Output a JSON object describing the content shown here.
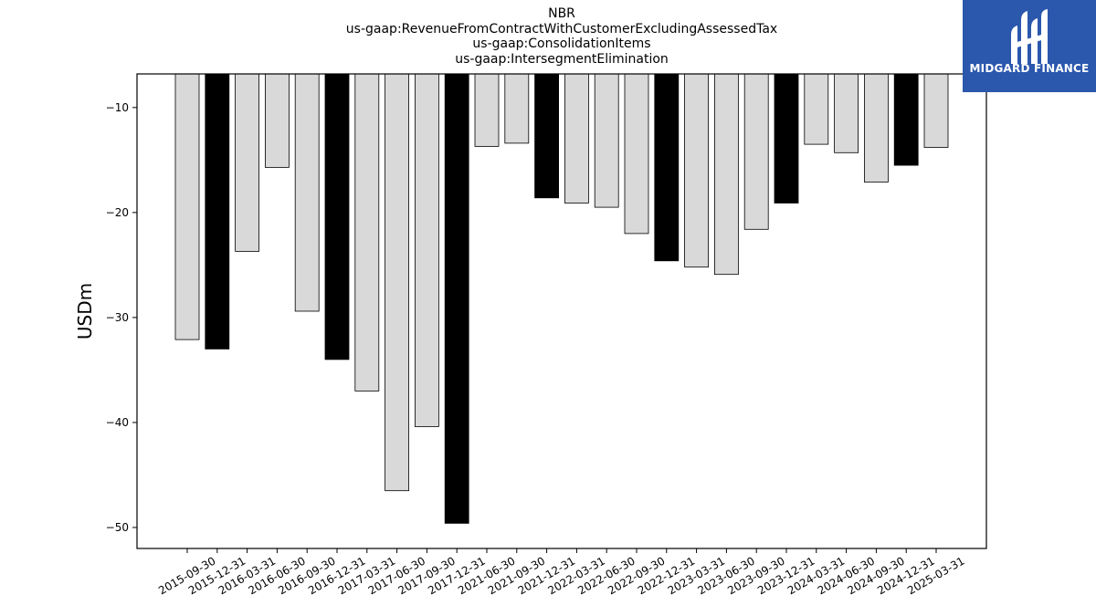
{
  "chart_data": {
    "type": "bar",
    "title_lines": [
      "NBR",
      "us-gaap:RevenueFromContractWithCustomerExcludingAssessedTax",
      "us-gaap:ConsolidationItems",
      "us-gaap:IntersegmentElimination"
    ],
    "xlabel": "",
    "ylabel": "USDm",
    "ylim": [
      -52,
      -6.8
    ],
    "yticks": [
      -10,
      -20,
      -30,
      -40,
      -50
    ],
    "grid": false,
    "colors": {
      "annual": "#000000",
      "quarterly": "#d9d9d9",
      "edge": "#000000"
    },
    "categories": [
      "2015-09-30",
      "2015-12-31",
      "2016-03-31",
      "2016-06-30",
      "2016-09-30",
      "2016-12-31",
      "2017-03-31",
      "2017-06-30",
      "2017-09-30",
      "2017-12-31",
      "2021-06-30",
      "2021-09-30",
      "2021-12-31",
      "2022-03-31",
      "2022-06-30",
      "2022-09-30",
      "2022-12-31",
      "2023-03-31",
      "2023-06-30",
      "2023-09-30",
      "2023-12-31",
      "2024-03-31",
      "2024-06-30",
      "2024-09-30",
      "2024-12-31",
      "2025-03-31"
    ],
    "values": [
      -32.1,
      -33.0,
      -23.7,
      -15.7,
      -29.4,
      -34.0,
      -37.0,
      -46.5,
      -40.4,
      -49.6,
      -13.7,
      -13.4,
      -18.6,
      -19.1,
      -19.5,
      -22.0,
      -24.6,
      -25.2,
      -25.9,
      -21.6,
      -19.1,
      -13.5,
      -14.3,
      -17.1,
      -15.5,
      -13.8
    ],
    "highlight": [
      false,
      true,
      false,
      false,
      false,
      true,
      false,
      false,
      false,
      true,
      false,
      false,
      true,
      false,
      false,
      false,
      true,
      false,
      false,
      false,
      true,
      false,
      false,
      false,
      true,
      false
    ]
  },
  "logo": {
    "text": "MIDGARD FINANCE"
  }
}
